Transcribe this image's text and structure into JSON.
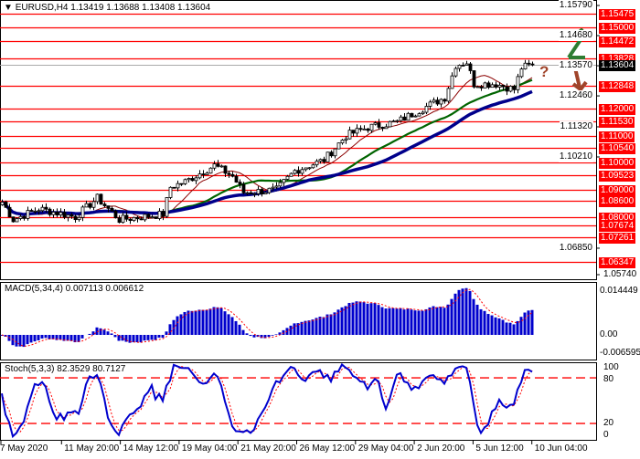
{
  "header": {
    "symbol": "EURUSD,H4",
    "ohlc": "1.13419 1.13688 1.13408 1.13604"
  },
  "price_axis": {
    "ticks": [
      "1.15790",
      "1.14680",
      "1.13570",
      "1.12460",
      "1.11320",
      "1.10210",
      "1.06850",
      "1.05740"
    ],
    "levels": [
      "1.15475",
      "1.15000",
      "1.14472",
      "1.13828",
      "1.12848",
      "1.12000",
      "1.11530",
      "1.11000",
      "1.10540",
      "1.10000",
      "1.09523",
      "1.09000",
      "1.08600",
      "1.08000",
      "1.07674",
      "1.07261",
      "1.06347"
    ],
    "current": "1.13604"
  },
  "macd": {
    "label": "MACD(5,34,4) 0.007113 0.006612",
    "ticks": [
      "0.014449",
      "0.00",
      "-0.006595"
    ]
  },
  "stoch": {
    "label": "Stoch(5,3,3) 82.3529 80.7127",
    "ticks": [
      "100",
      "80",
      "20",
      "0"
    ]
  },
  "time_axis": [
    "7 May 2020",
    "11 May 20:00",
    "14 May 12:00",
    "19 May 04:00",
    "21 May 20:00",
    "26 May 12:00",
    "29 May 04:00",
    "2 Jun 20:00",
    "5 Jun 12:00",
    "10 Jun 04:00"
  ],
  "signal": {
    "question": "?",
    "up_color": "#2e7d32",
    "down_color": "#a0442a"
  },
  "colors": {
    "level": "#ff0000",
    "ma_fast": "#8b0000",
    "ma_mid": "#006400",
    "ma_slow": "#00008b",
    "macd_hist": "#0000cd",
    "signal": "#ff0000"
  },
  "chart_data": {
    "type": "candlestick",
    "keyframes": [
      [
        0,
        1.0855
      ],
      [
        3,
        1.079
      ],
      [
        10,
        1.083
      ],
      [
        20,
        1.08
      ],
      [
        26,
        1.087
      ],
      [
        32,
        1.079
      ],
      [
        44,
        1.081
      ],
      [
        46,
        1.091
      ],
      [
        50,
        1.093
      ],
      [
        58,
        1.099
      ],
      [
        63,
        1.095
      ],
      [
        66,
        1.089
      ],
      [
        75,
        1.09
      ],
      [
        80,
        1.097
      ],
      [
        88,
        1.101
      ],
      [
        94,
        1.11
      ],
      [
        100,
        1.113
      ],
      [
        108,
        1.115
      ],
      [
        115,
        1.12
      ],
      [
        121,
        1.124
      ],
      [
        124,
        1.136
      ],
      [
        127,
        1.137
      ],
      [
        129,
        1.129
      ],
      [
        135,
        1.129
      ],
      [
        140,
        1.127
      ],
      [
        142,
        1.135
      ],
      [
        145,
        1.13604
      ]
    ]
  }
}
